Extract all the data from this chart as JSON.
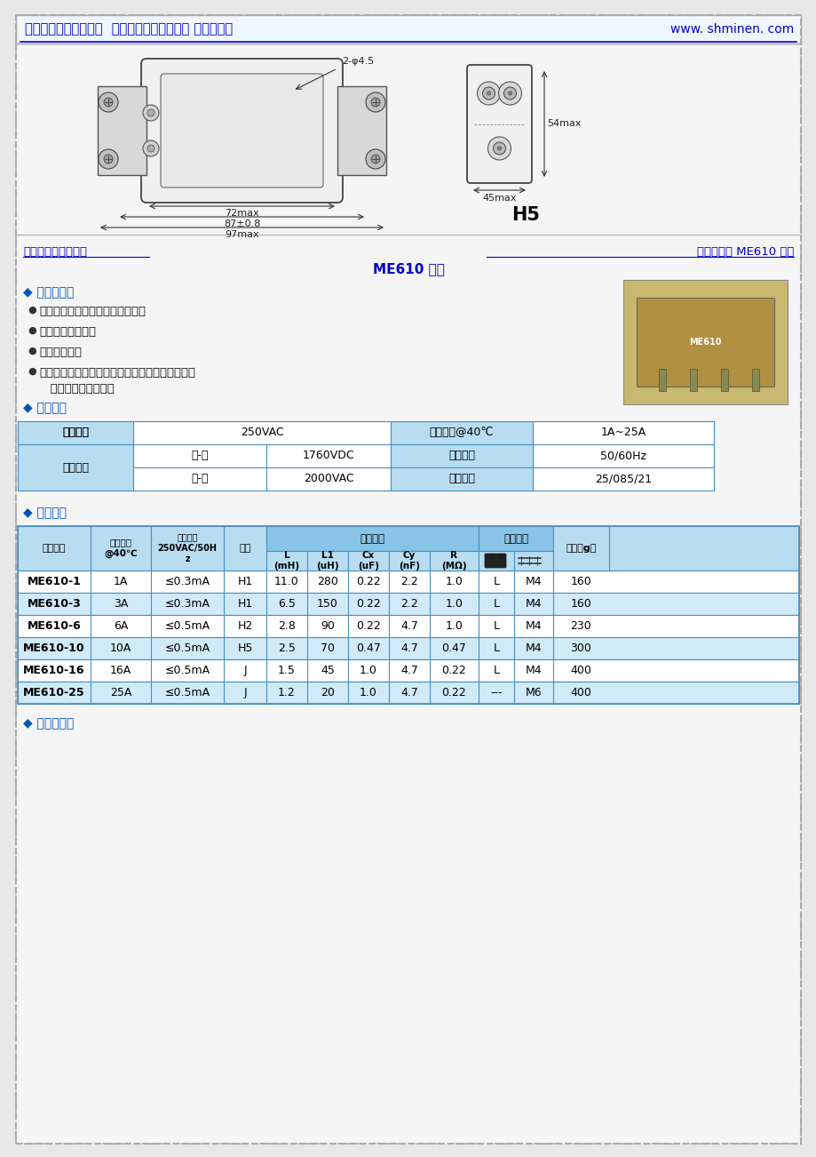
{
  "page_bg": "#ffffff",
  "outer_border_color": "#b0b0b0",
  "header_text": "上海民恩电气有限公司  专业的滤波器生产厂家 欢迎咨询！",
  "header_url": "www. shminen. com",
  "header_color": "#0000dd",
  "section1_left": "交流单相电源滤波器",
  "section1_right": "双节增强型 ME610 系列",
  "series_title": "ME610 系列",
  "features_title": "◆ 产品及应用",
  "features": [
    "双节滤波器，极强的差模滤波效果",
    "具有差模滤波电感",
    "低频性能优异",
    "适用于开关电源、逆变、伺服、电源转换器等单相"
  ],
  "feature_extra": "   工业设备等控制系统",
  "tech_title": "◆ 技术参数",
  "tech_table_cell_bg": "#b8ddf0",
  "tech_table_white": "#ffffff",
  "tech_table_border": "#4a8ec0",
  "product_title": "◆ 产品列表",
  "table_header_bg": "#88c4e8",
  "table_subheader_bg": "#b8ddf0",
  "table_row_bg_odd": "#ffffff",
  "table_row_bg_even": "#d0eaf8",
  "table_border": "#4a8ec0",
  "circuit_title": "◆ 电路原理图",
  "product_rows": [
    [
      "ME610-1",
      "1A",
      "≤0.3mA",
      "H1",
      "11.0",
      "280",
      "0.22",
      "2.2",
      "1.0",
      "L",
      "M4",
      "160"
    ],
    [
      "ME610-3",
      "3A",
      "≤0.3mA",
      "H1",
      "6.5",
      "150",
      "0.22",
      "2.2",
      "1.0",
      "L",
      "M4",
      "160"
    ],
    [
      "ME610-6",
      "6A",
      "≤0.5mA",
      "H2",
      "2.8",
      "90",
      "0.22",
      "4.7",
      "1.0",
      "L",
      "M4",
      "230"
    ],
    [
      "ME610-10",
      "10A",
      "≤0.5mA",
      "H5",
      "2.5",
      "70",
      "0.47",
      "4.7",
      "0.47",
      "L",
      "M4",
      "300"
    ],
    [
      "ME610-16",
      "16A",
      "≤0.5mA",
      "J",
      "1.5",
      "45",
      "1.0",
      "4.7",
      "0.22",
      "L",
      "M4",
      "400"
    ],
    [
      "ME610-25",
      "25A",
      "≤0.5mA",
      "J",
      "1.2",
      "20",
      "1.0",
      "4.7",
      "0.22",
      "---",
      "M6",
      "400"
    ]
  ]
}
